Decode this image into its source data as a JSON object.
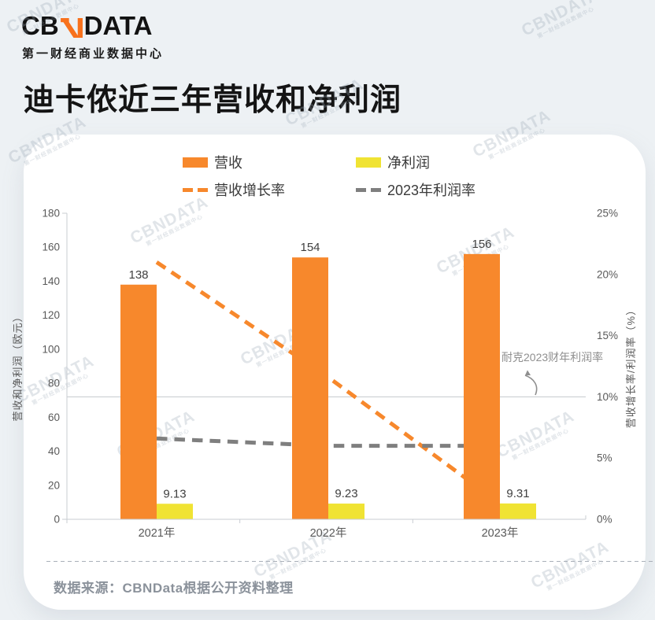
{
  "brand": {
    "logo_left": "CB",
    "logo_right": "DATA",
    "logo_subtitle": "第一财经商业数据中心",
    "logo_color": "#121212",
    "logo_accent": "#F8711C"
  },
  "page_title": "迪卡侬近三年营收和净利润",
  "watermark": {
    "line1": "CBNDATA",
    "line2": "第一财经商业数据中心"
  },
  "legend": [
    {
      "label": "营收",
      "swatch": "bar",
      "color": "#F7882C"
    },
    {
      "label": "净利润",
      "swatch": "bar",
      "color": "#F0E333"
    },
    {
      "label": "营收增长率",
      "swatch": "dash",
      "color": "#F7882C"
    },
    {
      "label": "2023年利润率",
      "swatch": "dash",
      "color": "#7F7F7F"
    }
  ],
  "chart_data": {
    "type": "bar+line combo",
    "categories": [
      "2021年",
      "2022年",
      "2023年"
    ],
    "series": [
      {
        "name": "营收",
        "type": "bar",
        "axis": "left",
        "color": "#F7882C",
        "values": [
          138,
          154,
          156
        ],
        "labels": [
          "138",
          "154",
          "156"
        ]
      },
      {
        "name": "净利润",
        "type": "bar",
        "axis": "left",
        "color": "#F0E333",
        "values": [
          9.13,
          9.23,
          9.31
        ],
        "labels": [
          "9.13",
          "9.23",
          "9.31"
        ]
      },
      {
        "name": "营收增长率",
        "type": "line",
        "axis": "right",
        "color": "#F7882C",
        "values": [
          21,
          11.6,
          1.3
        ]
      },
      {
        "name": "2023年利润率",
        "type": "line",
        "axis": "right",
        "color": "#7F7F7F",
        "values": [
          6.6,
          6.0,
          6.0
        ]
      }
    ],
    "left_axis": {
      "title": "营收和净利润（欧元）",
      "min": 0,
      "max": 180,
      "step": 20
    },
    "right_axis": {
      "title": "营收增长率/利润率（%）",
      "min": 0,
      "max": 25,
      "step": 5,
      "suffix": "%"
    },
    "reference_line": {
      "value_pct": 10,
      "label": "耐克2023财年利润率"
    },
    "grid": "off",
    "legend_position": "top"
  },
  "source": {
    "text": "数据来源：CBNData根据公开资料整理"
  }
}
